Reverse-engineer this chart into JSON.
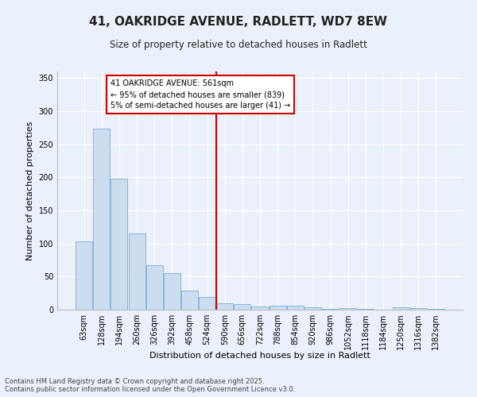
{
  "title1": "41, OAKRIDGE AVENUE, RADLETT, WD7 8EW",
  "title2": "Size of property relative to detached houses in Radlett",
  "xlabel": "Distribution of detached houses by size in Radlett",
  "ylabel": "Number of detached properties",
  "bar_color": "#ccddf0",
  "bar_edge_color": "#7aafd4",
  "background_color": "#eaf1fa",
  "grid_color": "#ffffff",
  "vline_color": "#cc0000",
  "vline_x": 7.5,
  "annotation_text": "41 OAKRIDGE AVENUE: 561sqm\n← 95% of detached houses are smaller (839)\n5% of semi-detached houses are larger (41) →",
  "annotation_box_color": "#cc0000",
  "categories": [
    "63sqm",
    "128sqm",
    "194sqm",
    "260sqm",
    "326sqm",
    "392sqm",
    "458sqm",
    "524sqm",
    "590sqm",
    "656sqm",
    "722sqm",
    "788sqm",
    "854sqm",
    "920sqm",
    "986sqm",
    "1052sqm",
    "1118sqm",
    "1184sqm",
    "1250sqm",
    "1316sqm",
    "1382sqm"
  ],
  "values": [
    103,
    274,
    198,
    115,
    67,
    55,
    29,
    19,
    10,
    8,
    5,
    6,
    6,
    4,
    1,
    3,
    1,
    0,
    4,
    2,
    1
  ],
  "ylim": [
    0,
    360
  ],
  "yticks": [
    0,
    50,
    100,
    150,
    200,
    250,
    300,
    350
  ],
  "footer1": "Contains HM Land Registry data © Crown copyright and database right 2025.",
  "footer2": "Contains public sector information licensed under the Open Government Licence v3.0."
}
